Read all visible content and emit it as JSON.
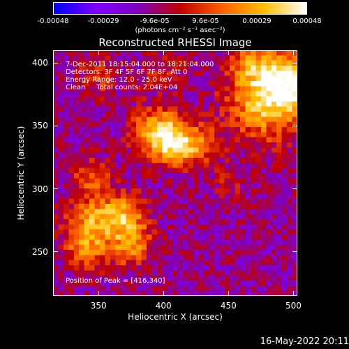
{
  "colorbar": {
    "tick_labels": [
      "-0.00048",
      "-0.00029",
      "-9.6e-05",
      "9.6e-05",
      "0.00029",
      "0.00048"
    ],
    "tick_values": [
      -0.00048,
      -0.00029,
      -9.6e-05,
      9.6e-05,
      0.00029,
      0.00048
    ],
    "range": [
      -0.00048,
      0.00048
    ],
    "unit_label": "(photons cm⁻² s⁻¹ asec⁻²)",
    "colors": [
      "#0000ff",
      "#8000ff",
      "#8000c0",
      "#c00000",
      "#ff6000",
      "#ffc000",
      "#ffffff"
    ]
  },
  "title": "Reconstructed RHESSI Image",
  "annotations": {
    "line1": "7-Dec-2011 18:15:04.000 to 18:21:04.000",
    "line2": "Detectors: 3F 4F 5F 6F 7F 8F, Att 0",
    "line3": "Energy Range: 12.0 - 25.0 keV",
    "line4": "Clean     Total counts: 2.04E+04",
    "peak": "Position of Peak = [416,340]"
  },
  "footer": "16-May-2022 20:11",
  "chart_data": {
    "type": "heatmap",
    "title": "Reconstructed RHESSI Image",
    "xlabel": "Heliocentric X (arcsec)",
    "ylabel": "Heliocentric Y (arcsec)",
    "xlim": [
      315,
      503
    ],
    "ylim": [
      215,
      410
    ],
    "x_ticks": [
      350,
      400,
      450,
      500
    ],
    "y_ticks": [
      250,
      300,
      350,
      400
    ],
    "x_tick_labels": [
      "350",
      "400",
      "450",
      "500"
    ],
    "y_tick_labels": [
      "250",
      "300",
      "350",
      "400"
    ],
    "colormap": "blue-purple-red-yellow-white",
    "peak_position": [
      416,
      340
    ],
    "sources": [
      {
        "x": 480,
        "y": 370,
        "amplitude": 0.00046,
        "sigma": 22
      },
      {
        "x": 498,
        "y": 385,
        "amplitude": 0.0004,
        "sigma": 14
      },
      {
        "x": 395,
        "y": 345,
        "amplitude": 0.00042,
        "sigma": 14
      },
      {
        "x": 410,
        "y": 335,
        "amplitude": 0.00038,
        "sigma": 12
      },
      {
        "x": 345,
        "y": 275,
        "amplitude": 0.00036,
        "sigma": 14
      },
      {
        "x": 370,
        "y": 280,
        "amplitude": 0.00036,
        "sigma": 12
      },
      {
        "x": 375,
        "y": 255,
        "amplitude": 0.00032,
        "sigma": 12
      },
      {
        "x": 340,
        "y": 250,
        "amplitude": 0.00028,
        "sigma": 11
      },
      {
        "x": 345,
        "y": 310,
        "amplitude": 0.00026,
        "sigma": 10
      },
      {
        "x": 430,
        "y": 335,
        "amplitude": 0.00024,
        "sigma": 10
      },
      {
        "x": 470,
        "y": 400,
        "amplitude": 0.00024,
        "sigma": 12
      },
      {
        "x": 350,
        "y": 390,
        "amplitude": 0.00016,
        "sigma": 12
      },
      {
        "x": 400,
        "y": 395,
        "amplitude": 0.00014,
        "sigma": 12
      },
      {
        "x": 450,
        "y": 305,
        "amplitude": 0.00012,
        "sigma": 10
      }
    ],
    "background_level": -0.00012
  }
}
